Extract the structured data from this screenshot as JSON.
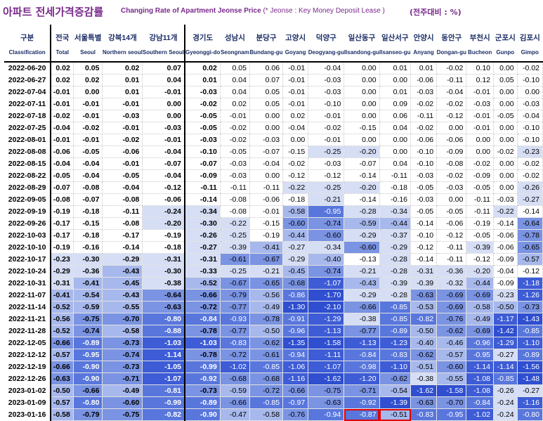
{
  "header": {
    "title_kr": "아파트 전세가격증감률",
    "title_en": "Changing Rate of Apartment Jeonse Price",
    "title_note": "(* Jeonse : Key Money Deposit Lease )",
    "unit": "(전주대비 : %)"
  },
  "columns": [
    {
      "kr": "구분",
      "en": "Classification"
    },
    {
      "kr": "전국",
      "en": "Total"
    },
    {
      "kr": "서울특별",
      "en": "Seoul"
    },
    {
      "kr": "강북14개",
      "en": "Northern seoul"
    },
    {
      "kr": "강남11개",
      "en": "Southern Seoul"
    },
    {
      "kr": "경기도",
      "en": "Gyeonggi-do"
    },
    {
      "kr": "성남시",
      "en": "Seongnam"
    },
    {
      "kr": "분당구",
      "en": "Bundang-gu"
    },
    {
      "kr": "고양시",
      "en": "Goyang"
    },
    {
      "kr": "덕양구",
      "en": "Deogyang-gu"
    },
    {
      "kr": "일산동구",
      "en": "Ilsandong-gu"
    },
    {
      "kr": "일산서구",
      "en": "Ilsanseo-gu"
    },
    {
      "kr": "안양시",
      "en": "Anyang"
    },
    {
      "kr": "동안구",
      "en": "Dongan-gu"
    },
    {
      "kr": "부천시",
      "en": "Bucheon"
    },
    {
      "kr": "군포시",
      "en": "Gunpo"
    },
    {
      "kr": "김포시",
      "en": "Gimpo"
    }
  ],
  "rows": [
    {
      "date": "2022-06-20",
      "values": [
        "0.02",
        "0.05",
        "0.02",
        "0.07",
        "0.02",
        "0.05",
        "0.06",
        "-0.01",
        "-0.04",
        "0.00",
        "0.01",
        "0.01",
        "-0.02",
        "0.10",
        "0.00",
        "-0.02"
      ]
    },
    {
      "date": "2022-06-27",
      "values": [
        "0.02",
        "0.02",
        "0.01",
        "0.04",
        "0.01",
        "0.04",
        "0.07",
        "-0.01",
        "-0.03",
        "0.00",
        "0.00",
        "-0.06",
        "-0.11",
        "0.12",
        "0.05",
        "-0.10"
      ]
    },
    {
      "date": "2022-07-04",
      "values": [
        "-0.01",
        "0.00",
        "0.01",
        "-0.01",
        "-0.03",
        "0.04",
        "0.05",
        "-0.01",
        "-0.03",
        "0.00",
        "0.01",
        "-0.03",
        "-0.04",
        "-0.01",
        "0.00",
        "0.00"
      ]
    },
    {
      "date": "2022-07-11",
      "values": [
        "-0.01",
        "-0.01",
        "-0.01",
        "0.00",
        "-0.02",
        "0.02",
        "0.05",
        "-0.01",
        "-0.10",
        "0.00",
        "0.09",
        "-0.02",
        "-0.02",
        "-0.03",
        "0.00",
        "-0.03"
      ]
    },
    {
      "date": "2022-07-18",
      "values": [
        "-0.02",
        "-0.01",
        "-0.03",
        "0.00",
        "-0.05",
        "-0.01",
        "0.00",
        "0.02",
        "-0.01",
        "0.00",
        "0.06",
        "-0.11",
        "-0.12",
        "-0.01",
        "-0.05",
        "-0.04"
      ]
    },
    {
      "date": "2022-07-25",
      "values": [
        "-0.04",
        "-0.02",
        "-0.01",
        "-0.03",
        "-0.05",
        "-0.02",
        "0.00",
        "-0.04",
        "-0.02",
        "-0.15",
        "0.04",
        "-0.02",
        "0.00",
        "-0.01",
        "0.00",
        "-0.10"
      ]
    },
    {
      "date": "2022-08-01",
      "values": [
        "-0.01",
        "-0.01",
        "-0.02",
        "-0.01",
        "-0.03",
        "-0.02",
        "-0.03",
        "0.00",
        "-0.01",
        "0.00",
        "0.00",
        "-0.06",
        "-0.06",
        "0.00",
        "0.00",
        "-0.10"
      ]
    },
    {
      "date": "2022-08-08",
      "values": [
        "-0.06",
        "-0.05",
        "-0.06",
        "-0.04",
        "-0.10",
        "-0.05",
        "-0.07",
        "-0.15",
        "-0.25",
        "-0.20",
        "0.00",
        "-0.10",
        "-0.09",
        "0.00",
        "-0.02",
        "-0.23"
      ]
    },
    {
      "date": "2022-08-15",
      "values": [
        "-0.04",
        "-0.04",
        "-0.01",
        "-0.07",
        "-0.07",
        "-0.03",
        "-0.04",
        "-0.02",
        "-0.03",
        "-0.07",
        "0.04",
        "-0.10",
        "-0.08",
        "-0.02",
        "0.00",
        "-0.02"
      ]
    },
    {
      "date": "2022-08-22",
      "values": [
        "-0.05",
        "-0.04",
        "-0.05",
        "-0.04",
        "-0.09",
        "-0.03",
        "0.00",
        "-0.12",
        "-0.12",
        "-0.14",
        "-0.11",
        "-0.03",
        "-0.02",
        "-0.09",
        "0.00",
        "-0.02"
      ]
    },
    {
      "date": "2022-08-29",
      "values": [
        "-0.07",
        "-0.08",
        "-0.04",
        "-0.12",
        "-0.11",
        "-0.11",
        "-0.11",
        "-0.22",
        "-0.25",
        "-0.20",
        "-0.18",
        "-0.05",
        "-0.03",
        "-0.05",
        "0.00",
        "-0.26"
      ]
    },
    {
      "date": "2022-09-05",
      "values": [
        "-0.08",
        "-0.07",
        "-0.08",
        "-0.06",
        "-0.14",
        "-0.08",
        "-0.06",
        "-0.18",
        "-0.21",
        "-0.14",
        "-0.16",
        "-0.03",
        "0.00",
        "-0.11",
        "-0.03",
        "-0.27"
      ]
    },
    {
      "date": "2022-09-19",
      "values": [
        "-0.19",
        "-0.18",
        "-0.11",
        "-0.24",
        "-0.34",
        "-0.08",
        "-0.01",
        "-0.58",
        "-0.95",
        "-0.28",
        "-0.34",
        "-0.05",
        "-0.05",
        "-0.11",
        "-0.22",
        "-0.14"
      ]
    },
    {
      "date": "2022-09-26",
      "values": [
        "-0.17",
        "-0.15",
        "-0.08",
        "-0.20",
        "-0.30",
        "-0.22",
        "-0.15",
        "-0.60",
        "-0.74",
        "-0.59",
        "-0.44",
        "-0.14",
        "-0.06",
        "-0.19",
        "-0.14",
        "-0.64"
      ]
    },
    {
      "date": "2022-10-03",
      "values": [
        "-0.17",
        "-0.18",
        "-0.17",
        "-0.19",
        "-0.26",
        "-0.25",
        "-0.19",
        "-0.44",
        "-0.60",
        "-0.29",
        "-0.37",
        "-0.10",
        "-0.12",
        "-0.05",
        "-0.06",
        "-0.78"
      ]
    },
    {
      "date": "2022-10-10",
      "values": [
        "-0.19",
        "-0.16",
        "-0.14",
        "-0.18",
        "-0.27",
        "-0.39",
        "-0.41",
        "-0.27",
        "-0.34",
        "-0.60",
        "-0.29",
        "-0.12",
        "-0.11",
        "-0.39",
        "-0.06",
        "-0.65"
      ]
    },
    {
      "date": "2022-10-17",
      "values": [
        "-0.23",
        "-0.30",
        "-0.29",
        "-0.31",
        "-0.31",
        "-0.61",
        "-0.67",
        "-0.29",
        "-0.40",
        "-0.13",
        "-0.28",
        "-0.14",
        "-0.11",
        "-0.12",
        "-0.09",
        "-0.57"
      ]
    },
    {
      "date": "2022-10-24",
      "values": [
        "-0.29",
        "-0.36",
        "-0.43",
        "-0.30",
        "-0.33",
        "-0.25",
        "-0.21",
        "-0.45",
        "-0.74",
        "-0.21",
        "-0.28",
        "-0.31",
        "-0.36",
        "-0.20",
        "-0.04",
        "-0.12"
      ]
    },
    {
      "date": "2022-10-31",
      "values": [
        "-0.31",
        "-0.41",
        "-0.45",
        "-0.38",
        "-0.52",
        "-0.67",
        "-0.65",
        "-0.68",
        "-1.07",
        "-0.43",
        "-0.39",
        "-0.39",
        "-0.32",
        "-0.44",
        "-0.09",
        "-1.18"
      ]
    },
    {
      "date": "2022-11-07",
      "values": [
        "-0.41",
        "-0.54",
        "-0.43",
        "-0.64",
        "-0.66",
        "-0.79",
        "-0.56",
        "-0.86",
        "-1.70",
        "-0.29",
        "-0.28",
        "-0.63",
        "-0.69",
        "-0.69",
        "-0.23",
        "-1.26"
      ]
    },
    {
      "date": "2022-11-14",
      "values": [
        "-0.52",
        "-0.59",
        "-0.55",
        "-0.63",
        "-0.72",
        "-0.77",
        "-0.49",
        "-1.30",
        "-2.10",
        "-0.66",
        "-0.85",
        "-0.53",
        "-0.69",
        "-0.58",
        "-0.50",
        "-0.73"
      ]
    },
    {
      "date": "2022-11-21",
      "values": [
        "-0.56",
        "-0.75",
        "-0.70",
        "-0.80",
        "-0.84",
        "-0.93",
        "-0.78",
        "-0.91",
        "-1.29",
        "-0.38",
        "-0.85",
        "-0.82",
        "-0.76",
        "-0.49",
        "-1.17",
        "-1.43"
      ]
    },
    {
      "date": "2022-11-28",
      "values": [
        "-0.52",
        "-0.74",
        "-0.58",
        "-0.88",
        "-0.78",
        "-0.77",
        "-0.50",
        "-0.96",
        "-1.13",
        "-0.77",
        "-0.89",
        "-0.50",
        "-0.62",
        "-0.69",
        "-1.42",
        "-0.85"
      ]
    },
    {
      "date": "2022-12-05",
      "values": [
        "-0.66",
        "-0.89",
        "-0.73",
        "-1.03",
        "-1.03",
        "-0.83",
        "-0.62",
        "-1.35",
        "-1.58",
        "-1.13",
        "-1.23",
        "-0.40",
        "-0.46",
        "-0.96",
        "-1.29",
        "-1.10"
      ]
    },
    {
      "date": "2022-12-12",
      "values": [
        "-0.57",
        "-0.95",
        "-0.74",
        "-1.14",
        "-0.78",
        "-0.72",
        "-0.61",
        "-0.94",
        "-1.11",
        "-0.84",
        "-0.83",
        "-0.62",
        "-0.57",
        "-0.95",
        "-0.27",
        "-0.89"
      ]
    },
    {
      "date": "2022-12-19",
      "values": [
        "-0.66",
        "-0.90",
        "-0.73",
        "-1.05",
        "-0.99",
        "-1.02",
        "-0.85",
        "-1.06",
        "-1.07",
        "-0.98",
        "-1.10",
        "-0.51",
        "-0.60",
        "-1.14",
        "-1.14",
        "-1.56"
      ]
    },
    {
      "date": "2022-12-26",
      "values": [
        "-0.63",
        "-0.90",
        "-0.71",
        "-1.07",
        "-0.92",
        "-0.68",
        "-0.68",
        "-1.16",
        "-1.62",
        "-1.20",
        "-0.62",
        "-0.38",
        "-0.55",
        "-1.08",
        "-0.85",
        "-1.48"
      ]
    },
    {
      "date": "2023-01-02",
      "values": [
        "-0.50",
        "-0.66",
        "-0.49",
        "-0.81",
        "-0.73",
        "-0.59",
        "-0.72",
        "-0.66",
        "-0.75",
        "-0.71",
        "-0.54",
        "-1.62",
        "-1.58",
        "-1.08",
        "-0.26",
        "-0.27"
      ]
    },
    {
      "date": "2023-01-09",
      "values": [
        "-0.57",
        "-0.80",
        "-0.60",
        "-0.99",
        "-0.89",
        "-0.66",
        "-0.85",
        "-0.97",
        "-0.63",
        "-0.92",
        "-1.39",
        "-0.63",
        "-0.70",
        "-0.84",
        "-0.24",
        "-1.16"
      ]
    },
    {
      "date": "2023-01-16",
      "values": [
        "-0.58",
        "-0.79",
        "-0.75",
        "-0.82",
        "-0.90",
        "-0.47",
        "-0.58",
        "-0.76",
        "-0.94",
        "-0.87",
        "-0.51",
        "-0.83",
        "-0.95",
        "-1.02",
        "-0.24",
        "-0.80"
      ]
    }
  ],
  "highlighted_cells": [
    {
      "date": "2023-01-16",
      "column": "일산동구"
    },
    {
      "date": "2023-01-16",
      "column": "일산서구"
    }
  ]
}
